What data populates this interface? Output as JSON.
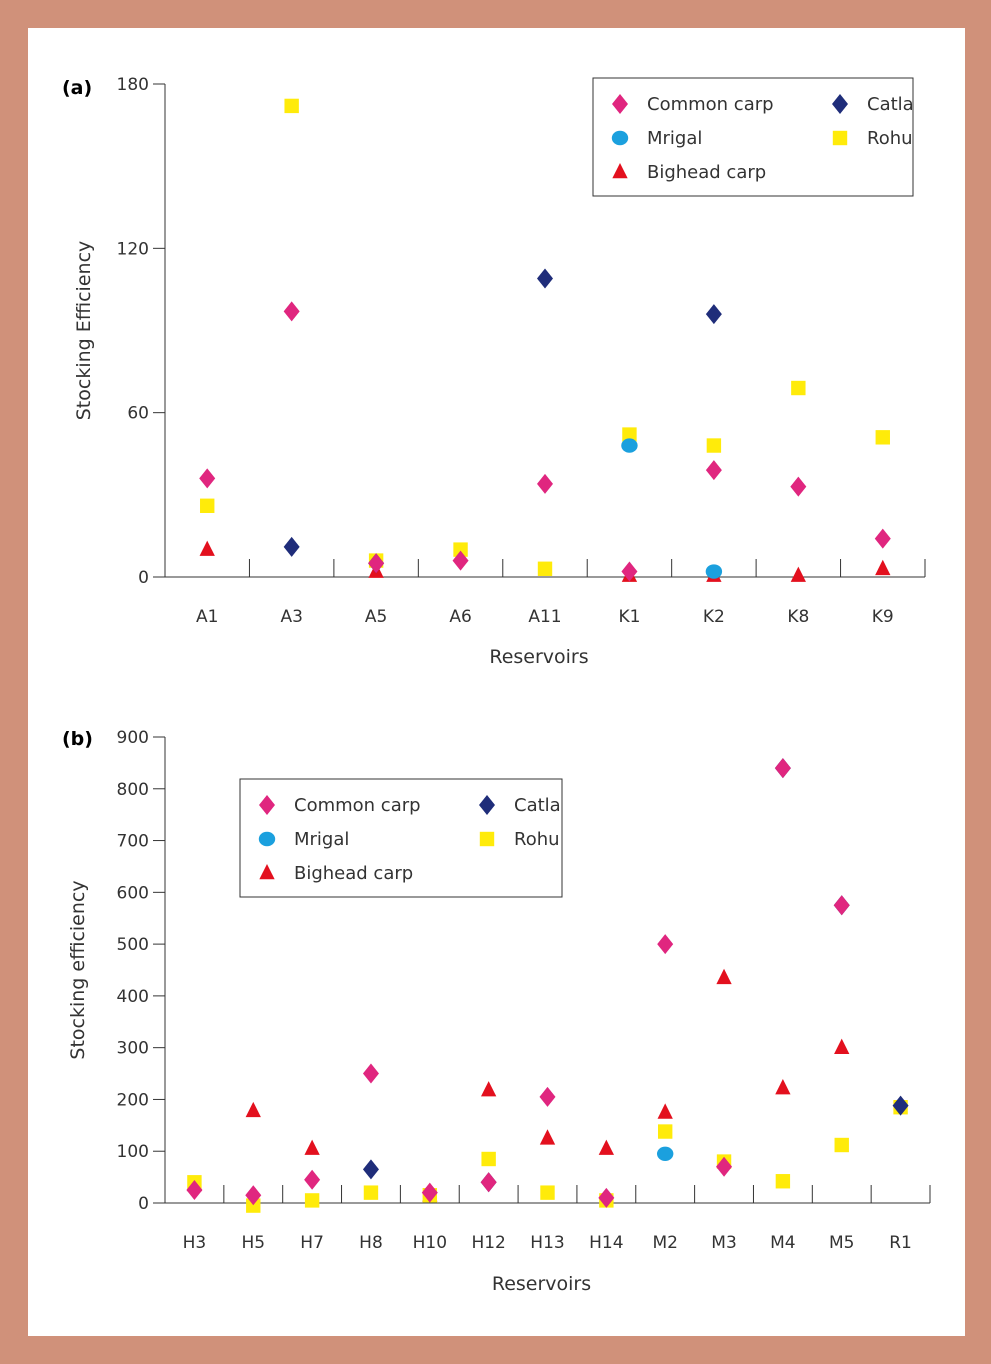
{
  "figure": {
    "background": "#d0917a",
    "panel_background": "#ffffff"
  },
  "series_style": {
    "Common carp": {
      "color": "#e0267f",
      "marker": "diamond"
    },
    "Catla": {
      "color": "#1f2d7a",
      "marker": "diamond"
    },
    "Mrigal": {
      "color": "#1ba0de",
      "marker": "circle"
    },
    "Rohu": {
      "color": "#ffeb0a",
      "marker": "square"
    },
    "Bighead carp": {
      "color": "#e3101e",
      "marker": "triangle"
    }
  },
  "chart_data": [
    {
      "type": "scatter",
      "panel_label": "(a)",
      "xlabel": "Reservoirs",
      "ylabel": "Stocking Efficiency",
      "ylim": [
        0,
        180
      ],
      "yticks": [
        0,
        60,
        120,
        180
      ],
      "yticks_labels": [
        "0",
        "60",
        "120",
        "180"
      ],
      "categories": [
        "A1",
        "A3",
        "A5",
        "A6",
        "A11",
        "K1",
        "K2",
        "K8",
        "K9"
      ],
      "legend": {
        "position": "top-right",
        "entries": [
          "Common carp",
          "Catla",
          "Mrigal",
          "Rohu",
          "Bighead carp"
        ]
      },
      "series": [
        {
          "name": "Common carp",
          "values": [
            36,
            97,
            5,
            6,
            34,
            2,
            39,
            33,
            14
          ]
        },
        {
          "name": "Catla",
          "values": [
            null,
            11,
            5,
            null,
            109,
            null,
            96,
            null,
            null
          ]
        },
        {
          "name": "Mrigal",
          "values": [
            null,
            null,
            null,
            null,
            null,
            48,
            2,
            null,
            null
          ]
        },
        {
          "name": "Rohu",
          "values": [
            26,
            172,
            6,
            10,
            3,
            52,
            48,
            69,
            51
          ]
        },
        {
          "name": "Bighead carp",
          "values": [
            10,
            null,
            2,
            null,
            null,
            0.5,
            0.5,
            0.5,
            3
          ]
        }
      ]
    },
    {
      "type": "scatter",
      "panel_label": "(b)",
      "xlabel": "Reservoirs",
      "ylabel": "Stocking efficiency",
      "ylim": [
        0,
        900
      ],
      "yticks": [
        0,
        100,
        200,
        300,
        400,
        500,
        600,
        700,
        800,
        900
      ],
      "yticks_labels": [
        "0",
        "100",
        "200",
        "300",
        "400",
        "500",
        "600",
        "700",
        "800",
        "900"
      ],
      "categories": [
        "H3",
        "H5",
        "H7",
        "H8",
        "H10",
        "H12",
        "H13",
        "H14",
        "M2",
        "M3",
        "M4",
        "M5",
        "R1"
      ],
      "legend": {
        "position": "top-left",
        "entries": [
          "Common carp",
          "Catla",
          "Mrigal",
          "Rohu",
          "Bighead carp"
        ]
      },
      "series": [
        {
          "name": "Common carp",
          "values": [
            25,
            15,
            45,
            250,
            20,
            40,
            205,
            10,
            500,
            70,
            840,
            575,
            null
          ]
        },
        {
          "name": "Catla",
          "values": [
            null,
            null,
            null,
            65,
            null,
            40,
            null,
            null,
            null,
            null,
            840,
            575,
            188
          ]
        },
        {
          "name": "Mrigal",
          "values": [
            null,
            null,
            null,
            null,
            null,
            null,
            null,
            null,
            95,
            null,
            null,
            null,
            null
          ]
        },
        {
          "name": "Rohu",
          "values": [
            40,
            -5,
            5,
            20,
            15,
            85,
            20,
            5,
            138,
            80,
            42,
            112,
            185
          ]
        },
        {
          "name": "Bighead carp",
          "values": [
            35,
            178,
            105,
            null,
            15,
            218,
            125,
            105,
            175,
            435,
            222,
            300,
            null
          ]
        }
      ]
    }
  ]
}
